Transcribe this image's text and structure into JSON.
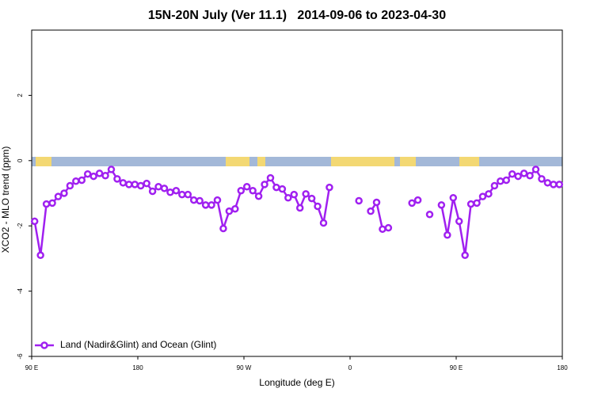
{
  "chart_data": {
    "type": "line",
    "title": "15N-20N July (Ver 11.1)   2014-09-06 to 2023-04-30",
    "xlabel": "Longitude (deg E)",
    "ylabel": "XCO2 - MLO trend (ppm)",
    "xlim": [
      90,
      540
    ],
    "ylim": [
      -6,
      4
    ],
    "xticks": [
      {
        "value": 90,
        "label": "90 E"
      },
      180,
      {
        "value": 270,
        "label": "90 W"
      },
      {
        "value": 360,
        "label": "0"
      },
      {
        "value": 450,
        "label": "90 E"
      },
      {
        "value": 540,
        "label": "180"
      }
    ],
    "yticks": [
      -6,
      -4,
      -2,
      0,
      2
    ],
    "legend": "bottom left",
    "x": [
      92.5,
      97.5,
      102.5,
      107.5,
      112.5,
      117.5,
      122.5,
      127.5,
      132.5,
      137.5,
      142.5,
      147.5,
      152.5,
      157.5,
      162.5,
      167.5,
      172.5,
      177.5,
      182.5,
      187.5,
      192.5,
      197.5,
      202.5,
      207.5,
      212.5,
      217.5,
      222.5,
      227.5,
      232.5,
      237.5,
      242.5,
      247.5,
      252.5,
      257.5,
      262.5,
      267.5,
      272.5,
      277.5,
      282.5,
      287.5,
      292.5,
      297.5,
      302.5,
      307.5,
      312.5,
      317.5,
      322.5,
      327.5,
      332.5,
      337.5,
      342.5,
      347.5,
      352.5,
      357.5,
      362.5,
      367.5,
      372.5,
      377.5,
      382.5,
      387.5,
      392.5,
      397.5,
      402.5,
      407.5,
      412.5,
      417.5,
      422.5,
      427.5,
      432.5,
      437.5,
      442.5,
      447.5,
      452.5,
      457.5,
      462.5,
      467.5,
      472.5,
      477.5,
      482.5,
      487.5,
      492.5,
      497.5,
      502.5,
      507.5,
      512.5,
      517.5,
      522.5,
      527.5,
      532.5,
      537.5
    ],
    "series": [
      {
        "name": "Land (Nadir&Glint) and Ocean (Glint)",
        "color": "#a020f0",
        "values": [
          -1.86,
          -2.9,
          -1.33,
          -1.3,
          -1.1,
          -1.0,
          -0.77,
          -0.63,
          -0.6,
          -0.41,
          -0.48,
          -0.39,
          -0.46,
          -0.27,
          -0.56,
          -0.68,
          -0.73,
          -0.73,
          -0.77,
          -0.7,
          -0.94,
          -0.8,
          -0.85,
          -0.97,
          -0.92,
          -1.04,
          -1.04,
          -1.21,
          -1.23,
          -1.36,
          -1.36,
          -1.21,
          -2.08,
          -1.55,
          -1.48,
          -0.92,
          -0.8,
          -0.92,
          -1.09,
          -0.73,
          -0.53,
          -0.82,
          -0.87,
          -1.14,
          -1.04,
          -1.45,
          -1.02,
          -1.16,
          -1.4,
          -1.91,
          -0.82,
          null,
          null,
          null,
          null,
          -1.23,
          null,
          -1.55,
          -1.28,
          -2.1,
          -2.06,
          null,
          null,
          null,
          -1.3,
          -1.21,
          null,
          -1.65,
          null,
          -1.36,
          -2.28,
          -1.14,
          -1.86,
          -2.9,
          -1.33,
          -1.3,
          -1.1,
          -1.02,
          -0.77,
          -0.63,
          -0.6,
          -0.41,
          -0.48,
          -0.39,
          -0.46,
          -0.27,
          -0.56,
          -0.68,
          -0.73,
          -0.73
        ]
      }
    ]
  }
}
